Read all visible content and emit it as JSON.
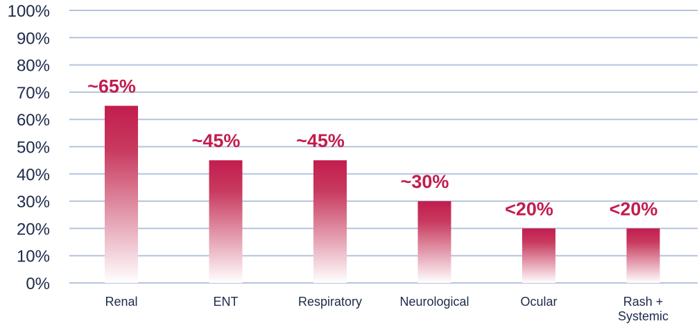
{
  "chart_data": {
    "type": "bar",
    "categories": [
      "Renal",
      "ENT",
      "Respiratory",
      "Neurological",
      "Ocular",
      "Rash + Systemic"
    ],
    "category_lines": [
      [
        "Renal"
      ],
      [
        "ENT"
      ],
      [
        "Respiratory"
      ],
      [
        "Neurological"
      ],
      [
        "Ocular"
      ],
      [
        "Rash +",
        "Systemic"
      ]
    ],
    "values": [
      65,
      45,
      45,
      30,
      20,
      20
    ],
    "data_labels": [
      "~65%",
      "~45%",
      "~45%",
      "~30%",
      "<20%",
      "<20%"
    ],
    "yticks": [
      "0%",
      "10%",
      "20%",
      "30%",
      "40%",
      "50%",
      "60%",
      "70%",
      "80%",
      "90%",
      "100%"
    ],
    "ylim": [
      0,
      100
    ],
    "grid": true,
    "colors": {
      "bar_top": "#c21d4e",
      "bar_bottom": "#ffffff",
      "label": "#c21d4e",
      "grid": "#b4c3dd",
      "tick": "#1c2a4a"
    }
  }
}
